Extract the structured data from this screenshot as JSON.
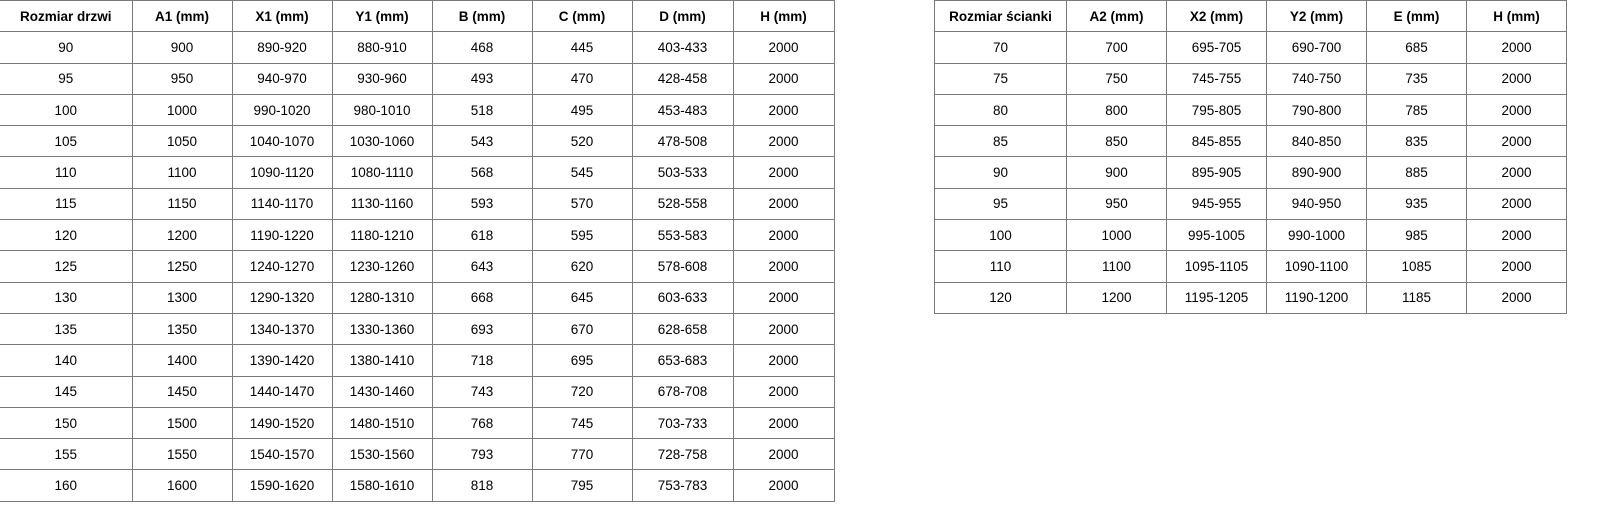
{
  "doors_table": {
    "headers": [
      "Rozmiar drzwi",
      "A1 (mm)",
      "X1 (mm)",
      "Y1 (mm)",
      "B (mm)",
      "C (mm)",
      "D (mm)",
      "H (mm)"
    ],
    "rows": [
      [
        "90",
        "900",
        "890-920",
        "880-910",
        "468",
        "445",
        "403-433",
        "2000"
      ],
      [
        "95",
        "950",
        "940-970",
        "930-960",
        "493",
        "470",
        "428-458",
        "2000"
      ],
      [
        "100",
        "1000",
        "990-1020",
        "980-1010",
        "518",
        "495",
        "453-483",
        "2000"
      ],
      [
        "105",
        "1050",
        "1040-1070",
        "1030-1060",
        "543",
        "520",
        "478-508",
        "2000"
      ],
      [
        "110",
        "1100",
        "1090-1120",
        "1080-1110",
        "568",
        "545",
        "503-533",
        "2000"
      ],
      [
        "115",
        "1150",
        "1140-1170",
        "1130-1160",
        "593",
        "570",
        "528-558",
        "2000"
      ],
      [
        "120",
        "1200",
        "1190-1220",
        "1180-1210",
        "618",
        "595",
        "553-583",
        "2000"
      ],
      [
        "125",
        "1250",
        "1240-1270",
        "1230-1260",
        "643",
        "620",
        "578-608",
        "2000"
      ],
      [
        "130",
        "1300",
        "1290-1320",
        "1280-1310",
        "668",
        "645",
        "603-633",
        "2000"
      ],
      [
        "135",
        "1350",
        "1340-1370",
        "1330-1360",
        "693",
        "670",
        "628-658",
        "2000"
      ],
      [
        "140",
        "1400",
        "1390-1420",
        "1380-1410",
        "718",
        "695",
        "653-683",
        "2000"
      ],
      [
        "145",
        "1450",
        "1440-1470",
        "1430-1460",
        "743",
        "720",
        "678-708",
        "2000"
      ],
      [
        "150",
        "1500",
        "1490-1520",
        "1480-1510",
        "768",
        "745",
        "703-733",
        "2000"
      ],
      [
        "155",
        "1550",
        "1540-1570",
        "1530-1560",
        "793",
        "770",
        "728-758",
        "2000"
      ],
      [
        "160",
        "1600",
        "1590-1620",
        "1580-1610",
        "818",
        "795",
        "753-783",
        "2000"
      ]
    ]
  },
  "wall_table": {
    "headers": [
      "Rozmiar ścianki",
      "A2 (mm)",
      "X2 (mm)",
      "Y2 (mm)",
      "E (mm)",
      "H (mm)"
    ],
    "rows": [
      [
        "70",
        "700",
        "695-705",
        "690-700",
        "685",
        "2000"
      ],
      [
        "75",
        "750",
        "745-755",
        "740-750",
        "735",
        "2000"
      ],
      [
        "80",
        "800",
        "795-805",
        "790-800",
        "785",
        "2000"
      ],
      [
        "85",
        "850",
        "845-855",
        "840-850",
        "835",
        "2000"
      ],
      [
        "90",
        "900",
        "895-905",
        "890-900",
        "885",
        "2000"
      ],
      [
        "95",
        "950",
        "945-955",
        "940-950",
        "935",
        "2000"
      ],
      [
        "100",
        "1000",
        "995-1005",
        "990-1000",
        "985",
        "2000"
      ],
      [
        "110",
        "1100",
        "1095-1105",
        "1090-1100",
        "1085",
        "2000"
      ],
      [
        "120",
        "1200",
        "1195-1205",
        "1190-1200",
        "1185",
        "2000"
      ]
    ]
  }
}
